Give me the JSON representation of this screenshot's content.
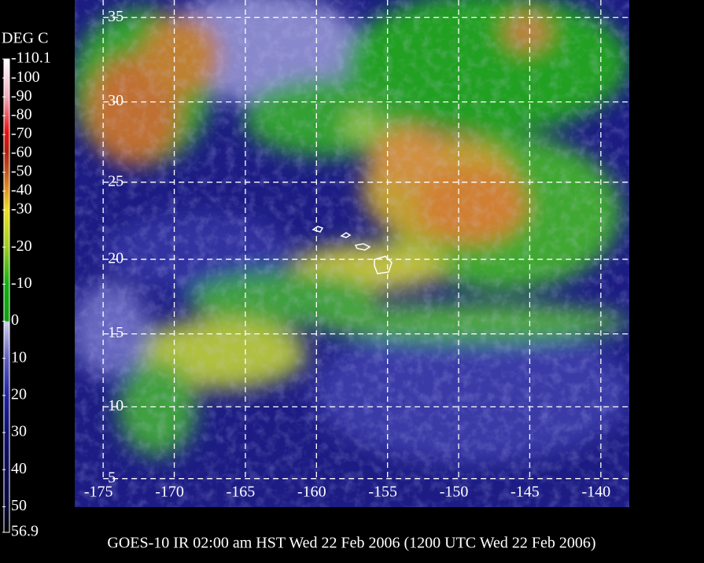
{
  "colorbar": {
    "title": "DEG C",
    "ticks": [
      -110.1,
      -100,
      -90,
      -80,
      -70,
      -60,
      -50,
      -40,
      -30,
      -20,
      -10,
      0,
      10,
      20,
      30,
      40,
      50,
      56.9
    ]
  },
  "map": {
    "lat_ticks": [
      35,
      30,
      25,
      20,
      15,
      10,
      5
    ],
    "lon_ticks": [
      -175,
      -170,
      -165,
      -160,
      -155,
      -150,
      -145,
      -140
    ],
    "lat_range": [
      3,
      36
    ],
    "lon_range": [
      -177,
      -138
    ]
  },
  "caption": "GOES-10 IR 02:00 am HST Wed 22 Feb 2006 (1200 UTC Wed 22 Feb 2006)"
}
